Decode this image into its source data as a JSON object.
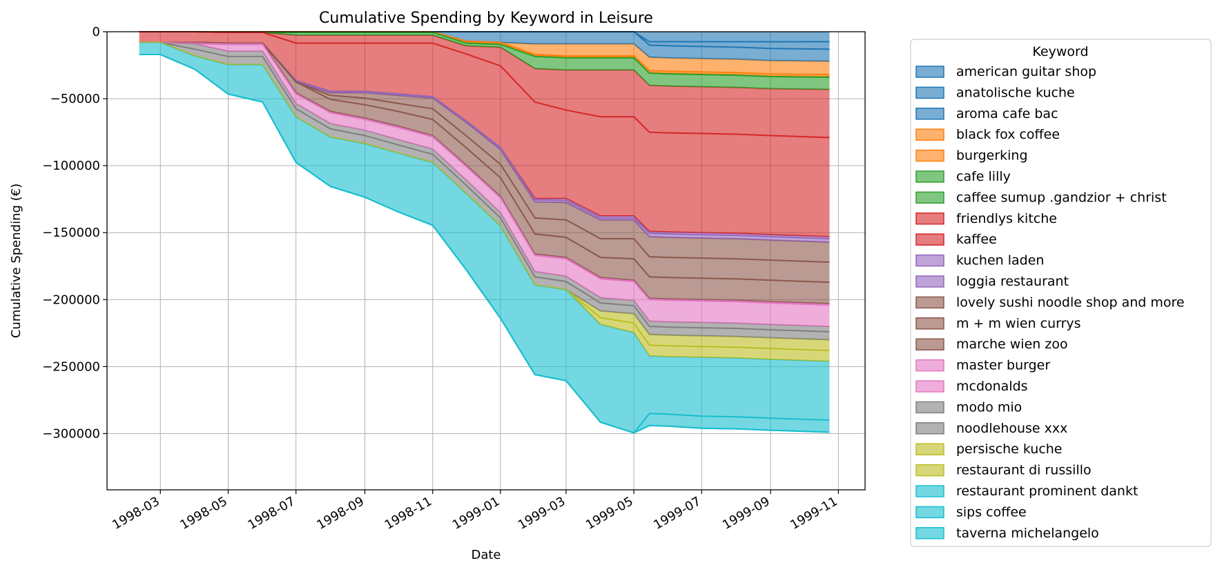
{
  "chart_data": {
    "type": "area",
    "stacked": true,
    "title": "Cumulative Spending by Keyword in Leisure",
    "xlabel": "Date",
    "ylabel": "Cumulative Spending (€)",
    "x_range": [
      "1998-01-12",
      "1999-11-25"
    ],
    "ylim": [
      -342000,
      0
    ],
    "x_ticks": [
      "1998-03",
      "1998-05",
      "1998-07",
      "1998-09",
      "1998-11",
      "1999-01",
      "1999-03",
      "1999-05",
      "1999-07",
      "1999-09",
      "1999-11"
    ],
    "y_ticks": [
      0,
      -50000,
      -100000,
      -150000,
      -200000,
      -250000,
      -300000
    ],
    "grid": true,
    "legend": {
      "title": "Keyword",
      "placement": "outside right"
    },
    "dates": [
      "1998-02-10",
      "1998-03-01",
      "1998-04-01",
      "1998-05-01",
      "1998-06-01",
      "1998-07-01",
      "1998-08-01",
      "1998-09-01",
      "1998-10-01",
      "1998-11-01",
      "1998-12-01",
      "1999-01-01",
      "1999-02-01",
      "1999-03-01",
      "1999-04-01",
      "1999-05-01",
      "1999-05-15",
      "1999-06-01",
      "1999-07-01",
      "1999-08-01",
      "1999-09-01",
      "1999-10-24"
    ],
    "series": [
      {
        "name": "american guitar shop",
        "color": "#1f77b4",
        "values": [
          0,
          0,
          0,
          0,
          0,
          0,
          0,
          0,
          0,
          0,
          0,
          0,
          0,
          0,
          0,
          0,
          -7500,
          -7500,
          -7500,
          -7500,
          -7500,
          -7500
        ]
      },
      {
        "name": "anatolische kuche",
        "color": "#1f77b4",
        "values": [
          0,
          0,
          0,
          0,
          0,
          0,
          0,
          0,
          0,
          0,
          0,
          0,
          0,
          0,
          0,
          0,
          -2500,
          -3000,
          -3500,
          -4000,
          -5000,
          -5500
        ]
      },
      {
        "name": "aroma cafe bac",
        "color": "#1f77b4",
        "values": [
          0,
          0,
          0,
          0,
          0,
          0,
          0,
          0,
          0,
          0,
          -7000,
          -8000,
          -9000,
          -9000,
          -9000,
          -9000,
          -9000,
          -9000,
          -9000,
          -9000,
          -9000,
          -9000
        ]
      },
      {
        "name": "black fox coffee",
        "color": "#ff7f0e",
        "values": [
          0,
          0,
          0,
          0,
          0,
          0,
          0,
          0,
          0,
          0,
          0,
          0,
          -8000,
          -9000,
          -9000,
          -9000,
          -10000,
          -10000,
          -10000,
          -10000,
          -10000,
          -10000
        ]
      },
      {
        "name": "burgerking",
        "color": "#ff7f0e",
        "values": [
          0,
          0,
          0,
          0,
          0,
          0,
          0,
          0,
          0,
          0,
          -1000,
          -1000,
          -1000,
          -1000,
          -1000,
          -1000,
          -1500,
          -1500,
          -1500,
          -1500,
          -1500,
          -1500
        ]
      },
      {
        "name": "cafe lilly",
        "color": "#2ca02c",
        "values": [
          0,
          0,
          0,
          -500,
          -500,
          -500,
          -500,
          -500,
          -500,
          -500,
          -500,
          -500,
          -500,
          -500,
          -500,
          -500,
          -500,
          -500,
          -500,
          -500,
          -500,
          -500
        ]
      },
      {
        "name": "caffee sumup .gandzior + christ",
        "color": "#2ca02c",
        "values": [
          0,
          0,
          0,
          0,
          0,
          -2000,
          -2000,
          -2000,
          -2000,
          -2000,
          -2000,
          -2000,
          -9000,
          -9000,
          -9000,
          -9000,
          -9000,
          -9000,
          -9000,
          -9000,
          -9000,
          -9000
        ]
      },
      {
        "name": "friendlys kitche",
        "color": "#d62728",
        "values": [
          0,
          0,
          0,
          0,
          0,
          -6000,
          -6000,
          -6000,
          -6000,
          -6000,
          -6000,
          -14000,
          -25000,
          -30000,
          -35000,
          -35000,
          -35000,
          -35000,
          -35000,
          -35000,
          -35000,
          -36000
        ]
      },
      {
        "name": "kaffee",
        "color": "#d62728",
        "values": [
          -8000,
          -8000,
          -8000,
          -8000,
          -8000,
          -28000,
          -36000,
          -36000,
          -38000,
          -40000,
          -50000,
          -61000,
          -72000,
          -66000,
          -74000,
          -74000,
          -74000,
          -74000,
          -74000,
          -74000,
          -74000,
          -74000
        ]
      },
      {
        "name": "kuchen laden",
        "color": "#9467bd",
        "values": [
          0,
          0,
          0,
          0,
          0,
          0,
          0,
          0,
          0,
          0,
          0,
          0,
          -1000,
          -1500,
          -1500,
          -1500,
          -1500,
          -1500,
          -1500,
          -1500,
          -1500,
          -1500
        ]
      },
      {
        "name": "loggia restaurant",
        "color": "#9467bd",
        "values": [
          0,
          0,
          0,
          0,
          0,
          -1000,
          -1000,
          -1000,
          -1000,
          -1000,
          -1000,
          -1500,
          -1500,
          -1500,
          -1500,
          -1500,
          -2500,
          -2500,
          -2500,
          -2500,
          -2500,
          -2500
        ]
      },
      {
        "name": "lovely sushi noodle shop and more",
        "color": "#8c564b",
        "values": [
          0,
          0,
          0,
          0,
          0,
          0,
          -2000,
          -4000,
          -6000,
          -8000,
          -10000,
          -11000,
          -12000,
          -13000,
          -14000,
          -14000,
          -15000,
          -15000,
          -15000,
          -15000,
          -15000,
          -15000
        ]
      },
      {
        "name": "m + m wien currys",
        "color": "#8c564b",
        "values": [
          0,
          0,
          0,
          0,
          0,
          0,
          -3000,
          -5000,
          -6000,
          -8000,
          -9000,
          -10000,
          -12000,
          -13000,
          -14000,
          -15000,
          -15000,
          -15000,
          -15000,
          -15000,
          -15000,
          -15000
        ]
      },
      {
        "name": "marche wien zoo",
        "color": "#8c564b",
        "values": [
          0,
          0,
          0,
          0,
          0,
          -8000,
          -9000,
          -10000,
          -11000,
          -12000,
          -13000,
          -14000,
          -15000,
          -15000,
          -15000,
          -16000,
          -16000,
          -16000,
          -16000,
          -16000,
          -16000,
          -16000
        ]
      },
      {
        "name": "master burger",
        "color": "#e377c2",
        "values": [
          0,
          0,
          -1000,
          -1000,
          -1000,
          -1000,
          -1000,
          -1000,
          -1000,
          -1000,
          -1000,
          -1000,
          -1000,
          -1000,
          -1000,
          -1000,
          -1000,
          -1000,
          -1000,
          -1000,
          -1000,
          -1000
        ]
      },
      {
        "name": "mcdonalds",
        "color": "#e377c2",
        "values": [
          0,
          0,
          0,
          -5000,
          -5000,
          -7000,
          -8000,
          -8000,
          -9000,
          -9000,
          -10000,
          -11000,
          -12000,
          -13000,
          -14000,
          -14000,
          -16000,
          -16000,
          -16000,
          -16000,
          -16000,
          -16000
        ]
      },
      {
        "name": "modo mio",
        "color": "#7f7f7f",
        "values": [
          0,
          0,
          -4000,
          -4000,
          -4000,
          -4000,
          -4000,
          -4000,
          -4000,
          -4000,
          -4000,
          -4000,
          -4000,
          -4000,
          -4000,
          -4000,
          -4000,
          -4000,
          -4000,
          -4000,
          -4000,
          -4000
        ]
      },
      {
        "name": "noodlehouse xxx",
        "color": "#7f7f7f",
        "values": [
          0,
          0,
          -5000,
          -6000,
          -6000,
          -6000,
          -6000,
          -6000,
          -6000,
          -6000,
          -6000,
          -6000,
          -6000,
          -6000,
          -6000,
          -6000,
          -6000,
          -6000,
          -6000,
          -6000,
          -6000,
          -6000
        ]
      },
      {
        "name": "persische kuche",
        "color": "#bcbd22",
        "values": [
          0,
          0,
          0,
          0,
          0,
          0,
          0,
          0,
          0,
          0,
          0,
          0,
          0,
          0,
          -5000,
          -7000,
          -8000,
          -8000,
          -8000,
          -8000,
          -8000,
          -8000
        ]
      },
      {
        "name": "restaurant di russillo",
        "color": "#bcbd22",
        "values": [
          0,
          0,
          0,
          0,
          0,
          0,
          0,
          0,
          0,
          0,
          0,
          0,
          0,
          0,
          -5000,
          -7000,
          -8000,
          -8000,
          -8000,
          -8000,
          -8000,
          -8000
        ]
      },
      {
        "name": "restaurant prominent dankt",
        "color": "#17becf",
        "values": [
          -9000,
          -9000,
          -10000,
          -22000,
          -28000,
          -34000,
          -37000,
          -40000,
          -44000,
          -47000,
          -57000,
          -69000,
          -67000,
          -68000,
          -73000,
          -75000,
          -43000,
          -43000,
          -44000,
          -44000,
          -44000,
          -44000
        ]
      },
      {
        "name": "sips coffee",
        "color": "#17becf",
        "values": [
          0,
          0,
          0,
          0,
          0,
          0,
          0,
          0,
          0,
          0,
          0,
          0,
          0,
          0,
          0,
          0,
          -9000,
          -9000,
          -9000,
          -9000,
          -9000,
          -9000
        ]
      },
      {
        "name": "taverna michelangelo",
        "color": "#17becf",
        "values": [
          0,
          0,
          0,
          0,
          0,
          0,
          0,
          0,
          0,
          0,
          0,
          0,
          0,
          0,
          0,
          0,
          0,
          0,
          0,
          0,
          0,
          0
        ]
      }
    ]
  }
}
